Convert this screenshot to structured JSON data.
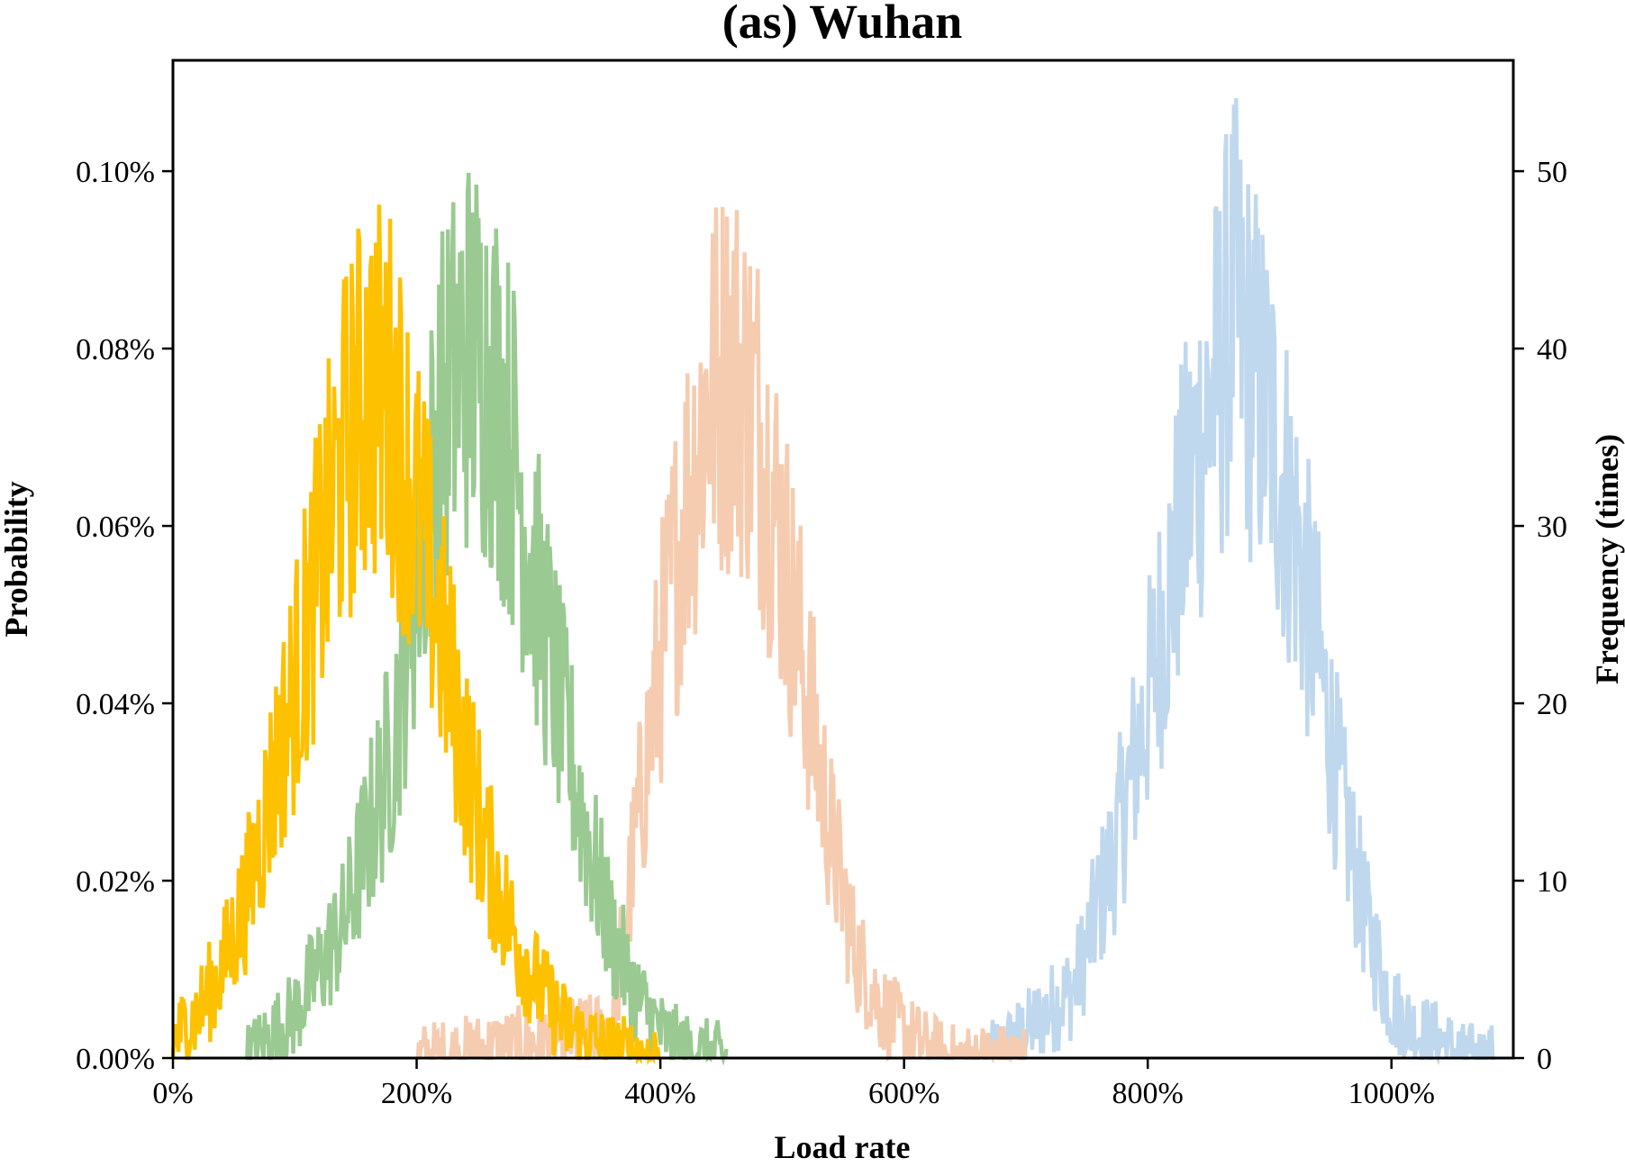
{
  "chart_data": {
    "type": "line",
    "title": "(as) Wuhan",
    "xlabel": "Load rate",
    "ylabel": "Probability",
    "y2label": "Frequency (times)",
    "xlim": [
      0,
      1100
    ],
    "ylim": [
      0,
      0.1125
    ],
    "y2lim": [
      0,
      56.25
    ],
    "x_ticks": [
      0,
      200,
      400,
      600,
      800,
      1000
    ],
    "x_tick_labels": [
      "0%",
      "200%",
      "400%",
      "600%",
      "800%",
      "1000%"
    ],
    "y_ticks": [
      0,
      0.02,
      0.04,
      0.06,
      0.08,
      0.1
    ],
    "y_tick_labels": [
      "0.00%",
      "0.02%",
      "0.04%",
      "0.06%",
      "0.08%",
      "0.10%"
    ],
    "y2_ticks": [
      0,
      10,
      20,
      30,
      40,
      50
    ],
    "y2_tick_labels": [
      "0",
      "10",
      "20",
      "30",
      "40",
      "50"
    ],
    "grid": false,
    "legend": "none",
    "series": [
      {
        "color": "#c0d8ee",
        "x": [
          670,
          700,
          740,
          770,
          800,
          820,
          840,
          860,
          870,
          880,
          900,
          920,
          940,
          960,
          980,
          1000,
          1020,
          1040,
          1060,
          1085
        ],
        "values": [
          0.0,
          0.003,
          0.008,
          0.022,
          0.04,
          0.055,
          0.068,
          0.078,
          0.085,
          0.08,
          0.072,
          0.06,
          0.045,
          0.028,
          0.015,
          0.006,
          0.003,
          0.002,
          0.0,
          0.0
        ]
      },
      {
        "color": "#f6ccb0",
        "x": [
          200,
          360,
          380,
          400,
          420,
          440,
          460,
          480,
          500,
          520,
          540,
          560,
          580,
          600,
          620,
          640,
          700
        ],
        "values": [
          0.0,
          0.003,
          0.025,
          0.045,
          0.062,
          0.075,
          0.078,
          0.072,
          0.058,
          0.042,
          0.025,
          0.012,
          0.006,
          0.003,
          0.001,
          0.0,
          0.0
        ]
      },
      {
        "color": "#9aca92",
        "x": [
          60,
          100,
          140,
          180,
          200,
          220,
          240,
          260,
          280,
          300,
          320,
          340,
          360,
          380,
          400,
          420,
          455
        ],
        "values": [
          0.0,
          0.005,
          0.015,
          0.035,
          0.055,
          0.072,
          0.08,
          0.078,
          0.068,
          0.052,
          0.038,
          0.025,
          0.014,
          0.007,
          0.003,
          0.001,
          0.0
        ]
      },
      {
        "color": "#fdc100",
        "x": [
          0,
          20,
          40,
          60,
          80,
          100,
          120,
          140,
          160,
          180,
          200,
          220,
          240,
          260,
          280,
          300,
          320,
          340,
          360,
          400
        ],
        "values": [
          0.002,
          0.005,
          0.01,
          0.018,
          0.03,
          0.042,
          0.055,
          0.068,
          0.076,
          0.074,
          0.062,
          0.048,
          0.034,
          0.022,
          0.014,
          0.008,
          0.004,
          0.002,
          0.001,
          0.0
        ]
      }
    ]
  }
}
